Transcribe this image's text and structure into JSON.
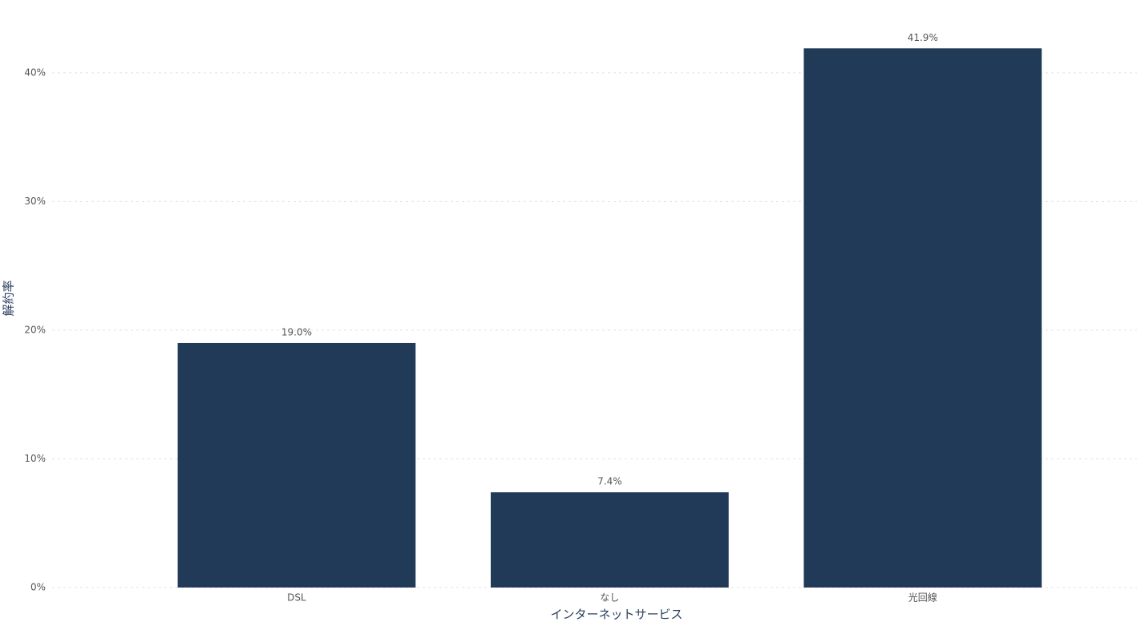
{
  "chart_data": {
    "type": "bar",
    "x_label": "インターネットサービス",
    "y_label": "解約率",
    "categories": [
      "DSL",
      "なし",
      "光回線"
    ],
    "values": [
      19.0,
      7.4,
      41.9
    ],
    "value_labels": [
      "19.0%",
      "7.4%",
      "41.9%"
    ],
    "color": "#213a58",
    "ylim": [
      0,
      44.1
    ],
    "yticks": [
      {
        "value": 0,
        "label": "0%"
      },
      {
        "value": 10,
        "label": "10%"
      },
      {
        "value": 20,
        "label": "20%"
      },
      {
        "value": 30,
        "label": "30%"
      },
      {
        "value": 40,
        "label": "40%"
      }
    ],
    "grid": true
  }
}
